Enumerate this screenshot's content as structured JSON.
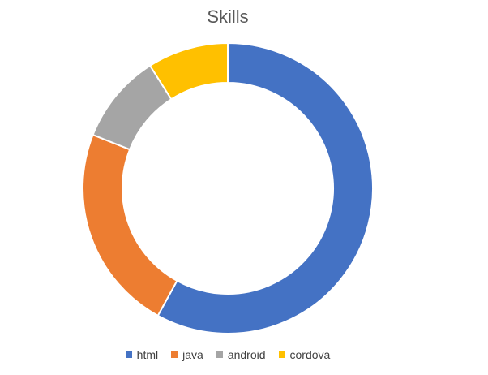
{
  "chart_data": {
    "type": "pie",
    "variant": "donut",
    "title": "Skills",
    "categories": [
      "html",
      "java",
      "android",
      "cordova"
    ],
    "values": [
      58,
      23,
      10,
      9
    ],
    "colors": [
      "#4472C4",
      "#ED7D31",
      "#A5A5A5",
      "#FFC000"
    ],
    "legend_position": "bottom"
  }
}
